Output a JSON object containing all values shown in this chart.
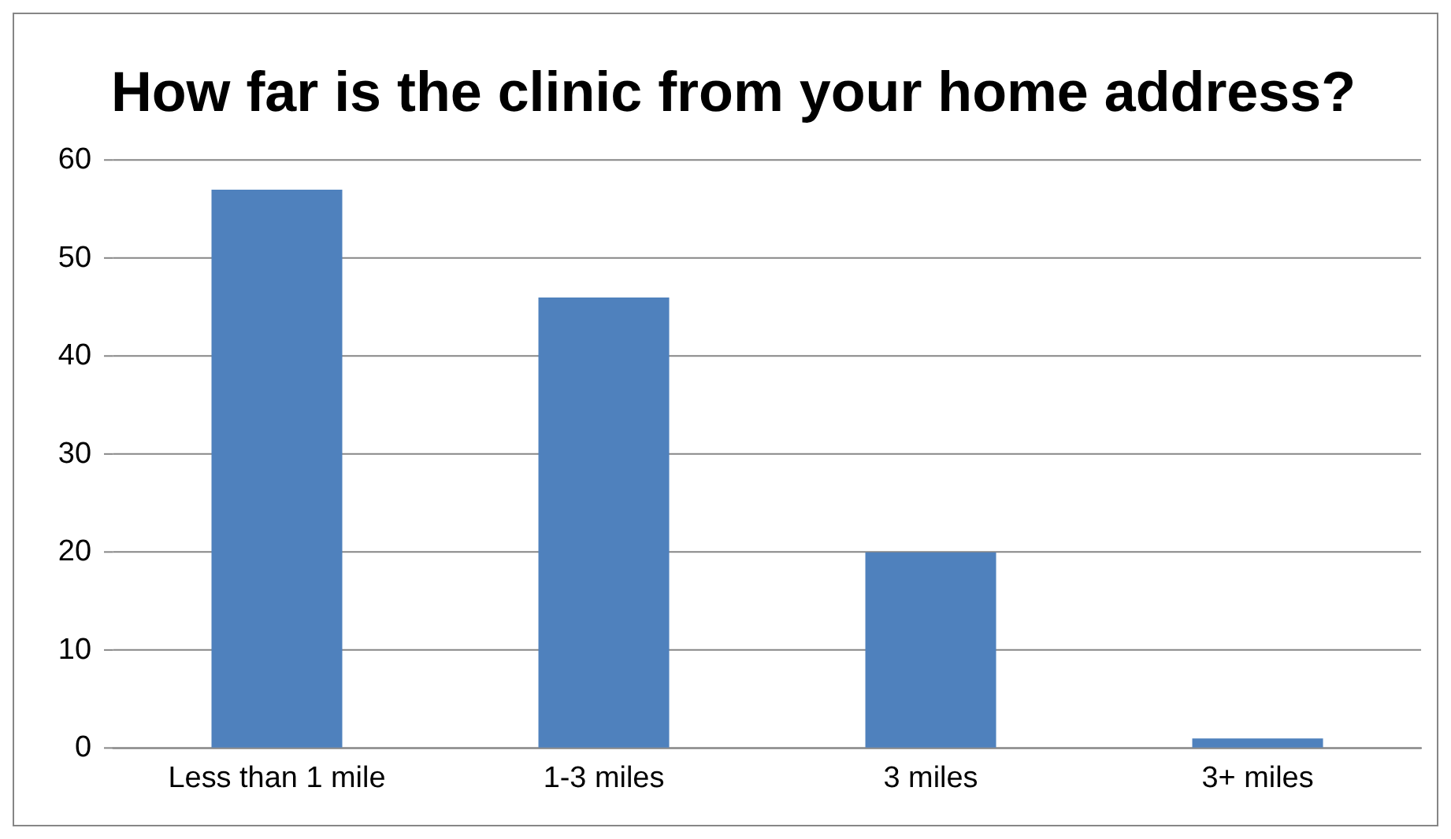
{
  "chart_data": {
    "type": "bar",
    "title": "How far is the clinic from your home address?",
    "categories": [
      "Less than 1 mile",
      "1-3 miles",
      "3 miles",
      "3+ miles"
    ],
    "values": [
      57,
      46,
      20,
      1
    ],
    "color": "#4f81bd",
    "ylim": [
      0,
      60
    ],
    "yticks": [
      0,
      10,
      20,
      30,
      40,
      50,
      60
    ],
    "grid": "y"
  }
}
